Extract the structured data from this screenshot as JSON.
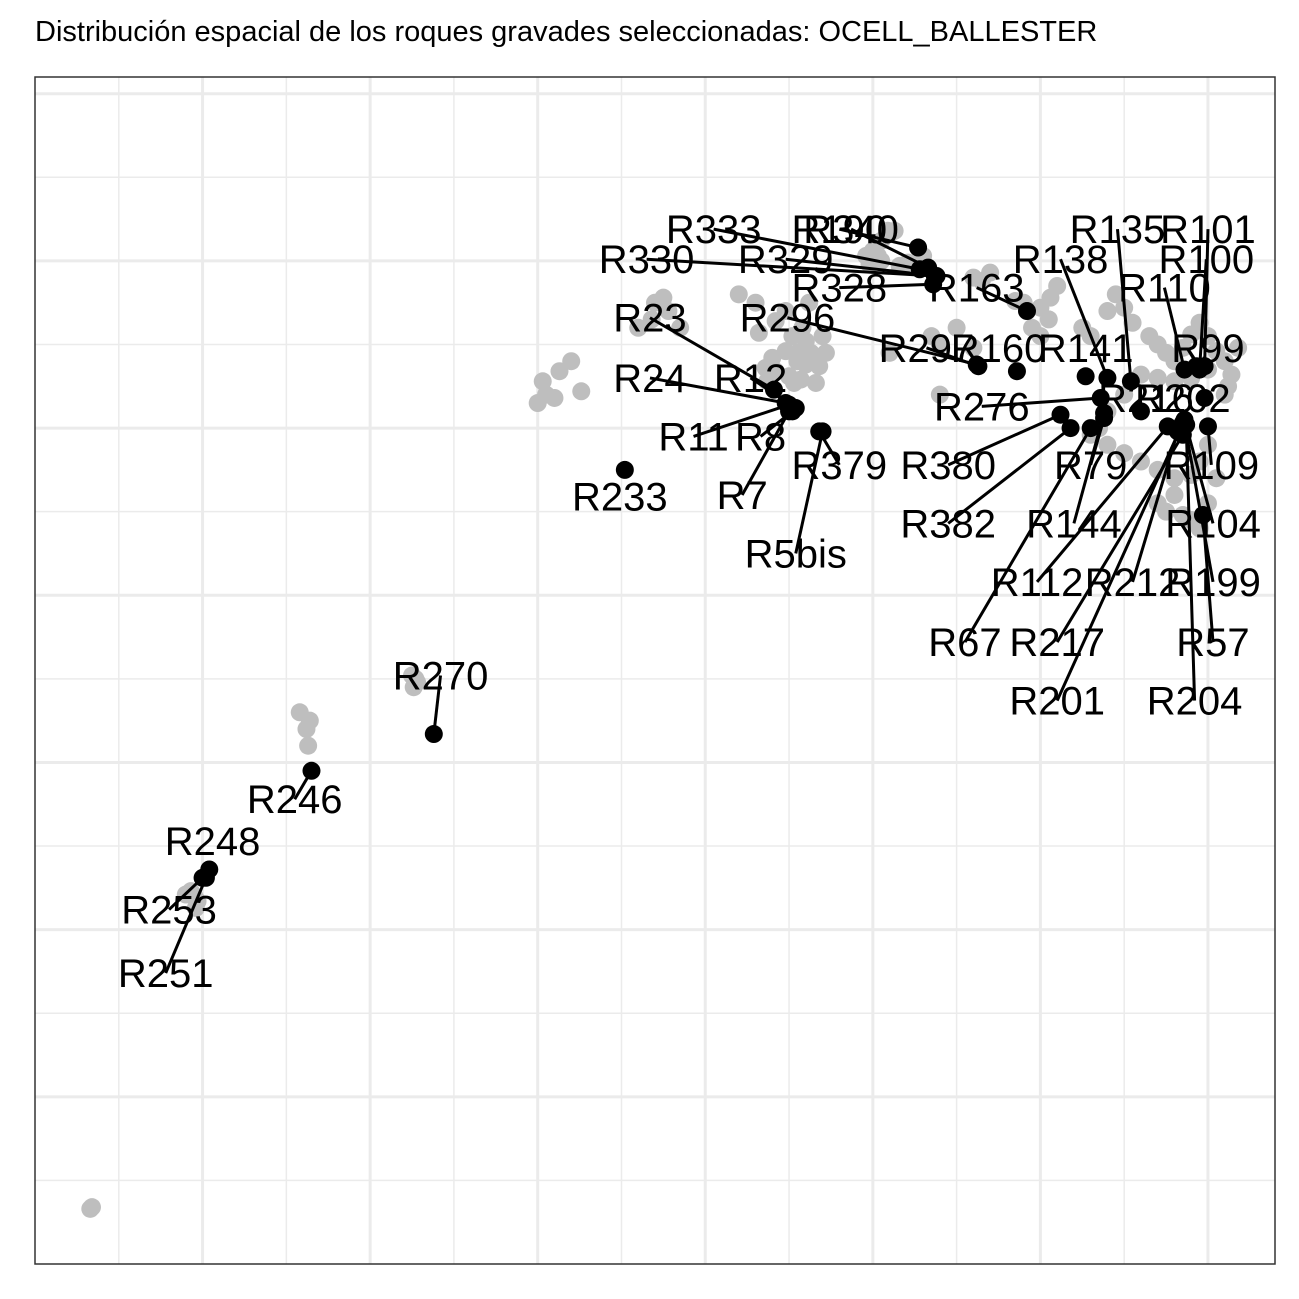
{
  "chart_data": {
    "type": "scatter",
    "title": "Distribución espacial de los roques gravades seleccionadas:  OCELL_BALLESTER",
    "xlabel": "",
    "ylabel": "",
    "grid": true,
    "legend": "none",
    "xlim": [
      0,
      740
    ],
    "ylim": [
      0,
      710
    ],
    "colors": {
      "background_points": "#bebebe",
      "selected_points": "#000000",
      "leader_lines": "#000000",
      "grid": "#ebebeb",
      "panel_border": "#333333"
    },
    "background_points": [
      [
        33,
        33
      ],
      [
        34,
        34
      ],
      [
        158,
        330
      ],
      [
        162,
        320
      ],
      [
        164,
        325
      ],
      [
        163,
        310
      ],
      [
        226,
        345
      ],
      [
        228,
        348
      ],
      [
        227,
        350
      ],
      [
        225,
        352
      ],
      [
        93,
        223
      ],
      [
        95,
        220
      ],
      [
        97,
        217
      ],
      [
        96,
        213
      ],
      [
        90,
        221
      ],
      [
        303,
        528
      ],
      [
        305,
        520
      ],
      [
        300,
        515
      ],
      [
        310,
        518
      ],
      [
        313,
        534
      ],
      [
        320,
        540
      ],
      [
        326,
        522
      ],
      [
        360,
        560
      ],
      [
        370,
        575
      ],
      [
        368,
        565
      ],
      [
        375,
        578
      ],
      [
        378,
        570
      ],
      [
        385,
        560
      ],
      [
        432,
        557
      ],
      [
        420,
        580
      ],
      [
        430,
        575
      ],
      [
        436,
        536
      ],
      [
        437,
        528
      ],
      [
        455,
        540
      ],
      [
        455,
        545
      ],
      [
        460,
        538
      ],
      [
        463,
        545
      ],
      [
        465,
        541
      ],
      [
        468,
        537
      ],
      [
        472,
        545
      ],
      [
        440,
        542
      ],
      [
        442,
        534
      ],
      [
        448,
        546
      ],
      [
        450,
        531
      ],
      [
        453,
        527
      ],
      [
        457,
        529
      ],
      [
        460,
        552
      ],
      [
        452,
        555
      ],
      [
        458,
        560
      ],
      [
        442,
        564
      ],
      [
        448,
        570
      ],
      [
        466,
        527
      ],
      [
        470,
        555
      ],
      [
        462,
        575
      ],
      [
        496,
        603
      ],
      [
        499,
        602
      ],
      [
        500,
        606
      ],
      [
        503,
        603
      ],
      [
        505,
        600
      ],
      [
        498,
        598
      ],
      [
        505,
        612
      ],
      [
        509,
        618
      ],
      [
        511,
        617
      ],
      [
        513,
        618
      ],
      [
        521,
        599
      ],
      [
        516,
        597
      ],
      [
        530,
        603
      ],
      [
        535,
        555
      ],
      [
        540,
        550
      ],
      [
        550,
        560
      ],
      [
        560,
        590
      ],
      [
        565,
        588
      ],
      [
        570,
        593
      ],
      [
        585,
        576
      ],
      [
        590,
        575
      ],
      [
        600,
        572
      ],
      [
        606,
        578
      ],
      [
        610,
        585
      ],
      [
        605,
        565
      ],
      [
        600,
        555
      ],
      [
        595,
        560
      ],
      [
        625,
        560
      ],
      [
        630,
        555
      ],
      [
        640,
        570
      ],
      [
        645,
        580
      ],
      [
        650,
        572
      ],
      [
        655,
        563
      ],
      [
        665,
        555
      ],
      [
        670,
        550
      ],
      [
        675,
        545
      ],
      [
        680,
        540
      ],
      [
        685,
        548
      ],
      [
        690,
        556
      ],
      [
        695,
        563
      ],
      [
        700,
        555
      ],
      [
        705,
        546
      ],
      [
        710,
        540
      ],
      [
        714,
        532
      ],
      [
        718,
        548
      ],
      [
        700,
        535
      ],
      [
        690,
        530
      ],
      [
        680,
        528
      ],
      [
        670,
        530
      ],
      [
        660,
        532
      ],
      [
        650,
        520
      ],
      [
        640,
        510
      ],
      [
        635,
        500
      ],
      [
        630,
        496
      ],
      [
        640,
        490
      ],
      [
        650,
        485
      ],
      [
        660,
        480
      ],
      [
        670,
        475
      ],
      [
        680,
        470
      ],
      [
        690,
        472
      ],
      [
        695,
        480
      ],
      [
        700,
        490
      ],
      [
        680,
        460
      ],
      [
        670,
        455
      ],
      [
        675,
        450
      ],
      [
        685,
        448
      ],
      [
        690,
        445
      ],
      [
        695,
        440
      ],
      [
        700,
        455
      ],
      [
        705,
        470
      ],
      [
        710,
        520
      ],
      [
        712,
        525
      ],
      [
        560,
        548
      ],
      [
        540,
        520
      ],
      [
        510,
        545
      ]
    ],
    "points": [
      {
        "label": "R333",
        "x": 528,
        "y": 595,
        "lx": 405,
        "ly": 619
      },
      {
        "label": "R340",
        "x": 533,
        "y": 596,
        "lx": 487,
        "ly": 619
      },
      {
        "label": "R190",
        "x": 527,
        "y": 608,
        "lx": 480,
        "ly": 619
      },
      {
        "label": "R330",
        "x": 537,
        "y": 591,
        "lx": 365,
        "ly": 601
      },
      {
        "label": "R329",
        "x": 538,
        "y": 591,
        "lx": 448,
        "ly": 601
      },
      {
        "label": "R328",
        "x": 536,
        "y": 586,
        "lx": 480,
        "ly": 584
      },
      {
        "label": "R163",
        "x": 592,
        "y": 570,
        "lx": 562,
        "ly": 584
      },
      {
        "label": "R135",
        "x": 654,
        "y": 528,
        "lx": 646,
        "ly": 619
      },
      {
        "label": "R101",
        "x": 698,
        "y": 537,
        "lx": 700,
        "ly": 619
      },
      {
        "label": "R138",
        "x": 640,
        "y": 530,
        "lx": 612,
        "ly": 601
      },
      {
        "label": "R100",
        "x": 695,
        "y": 535,
        "lx": 699,
        "ly": 601
      },
      {
        "label": "R110",
        "x": 686,
        "y": 535,
        "lx": 674,
        "ly": 584
      },
      {
        "label": "R23",
        "x": 441,
        "y": 523,
        "lx": 367,
        "ly": 566
      },
      {
        "label": "R296",
        "x": 562,
        "y": 538,
        "lx": 449,
        "ly": 566
      },
      {
        "label": "R297",
        "x": 563,
        "y": 537,
        "lx": 532,
        "ly": 548
      },
      {
        "label": "R160",
        "x": 586,
        "y": 534,
        "lx": 575,
        "ly": 548
      },
      {
        "label": "R141",
        "x": 627,
        "y": 531,
        "lx": 627,
        "ly": 548
      },
      {
        "label": "R99",
        "x": 693,
        "y": 537,
        "lx": 700,
        "ly": 548
      },
      {
        "label": "R24",
        "x": 448,
        "y": 515,
        "lx": 367,
        "ly": 530
      },
      {
        "label": "R12",
        "x": 454,
        "y": 512,
        "lx": 427,
        "ly": 530
      },
      {
        "label": "R276",
        "x": 636,
        "y": 518,
        "lx": 565,
        "ly": 513
      },
      {
        "label": "R11",
        "x": 450,
        "y": 514,
        "lx": 393,
        "ly": 495
      },
      {
        "label": "R8",
        "x": 452,
        "y": 510,
        "lx": 433,
        "ly": 495
      },
      {
        "label": "R233",
        "x": 352,
        "y": 475,
        "lx": 349,
        "ly": 459
      },
      {
        "label": "R379",
        "x": 468,
        "y": 498,
        "lx": 480,
        "ly": 478
      },
      {
        "label": "R380",
        "x": 612,
        "y": 508,
        "lx": 545,
        "ly": 478
      },
      {
        "label": "R79",
        "x": 638,
        "y": 506,
        "lx": 630,
        "ly": 478
      },
      {
        "label": "R109",
        "x": 700,
        "y": 501,
        "lx": 702,
        "ly": 478
      },
      {
        "label": "R7",
        "x": 450,
        "y": 510,
        "lx": 422,
        "ly": 460
      },
      {
        "label": "R382",
        "x": 618,
        "y": 500,
        "lx": 545,
        "ly": 443
      },
      {
        "label": "R144",
        "x": 638,
        "y": 509,
        "lx": 620,
        "ly": 443
      },
      {
        "label": "R104",
        "x": 686,
        "y": 505,
        "lx": 703,
        "ly": 443
      },
      {
        "label": "R5bis",
        "x": 470,
        "y": 498,
        "lx": 454,
        "ly": 425
      },
      {
        "label": "R112",
        "x": 676,
        "y": 501,
        "lx": 598,
        "ly": 408
      },
      {
        "label": "R212",
        "x": 682,
        "y": 498,
        "lx": 655,
        "ly": 408
      },
      {
        "label": "R199",
        "x": 686,
        "y": 503,
        "lx": 703,
        "ly": 408
      },
      {
        "label": "R67",
        "x": 630,
        "y": 500,
        "lx": 555,
        "ly": 372
      },
      {
        "label": "R217",
        "x": 685,
        "y": 496,
        "lx": 610,
        "ly": 372
      },
      {
        "label": "R57",
        "x": 697,
        "y": 448,
        "lx": 703,
        "ly": 372
      },
      {
        "label": "R201",
        "x": 685,
        "y": 503,
        "lx": 610,
        "ly": 337
      },
      {
        "label": "R204",
        "x": 687,
        "y": 502,
        "lx": 692,
        "ly": 337
      },
      {
        "label": "R202",
        "x": 698,
        "y": 518,
        "lx": 685,
        "ly": 518
      },
      {
        "label": "R216",
        "x": 660,
        "y": 510,
        "lx": 663,
        "ly": 518
      },
      {
        "label": "R270",
        "x": 238,
        "y": 317,
        "lx": 242,
        "ly": 352
      },
      {
        "label": "R246",
        "x": 165,
        "y": 295,
        "lx": 155,
        "ly": 278
      },
      {
        "label": "R248",
        "x": 104,
        "y": 236,
        "lx": 106,
        "ly": 253
      },
      {
        "label": "R253",
        "x": 100,
        "y": 231,
        "lx": 80,
        "ly": 212
      },
      {
        "label": "R251",
        "x": 102,
        "y": 231,
        "lx": 78,
        "ly": 174
      }
    ]
  }
}
